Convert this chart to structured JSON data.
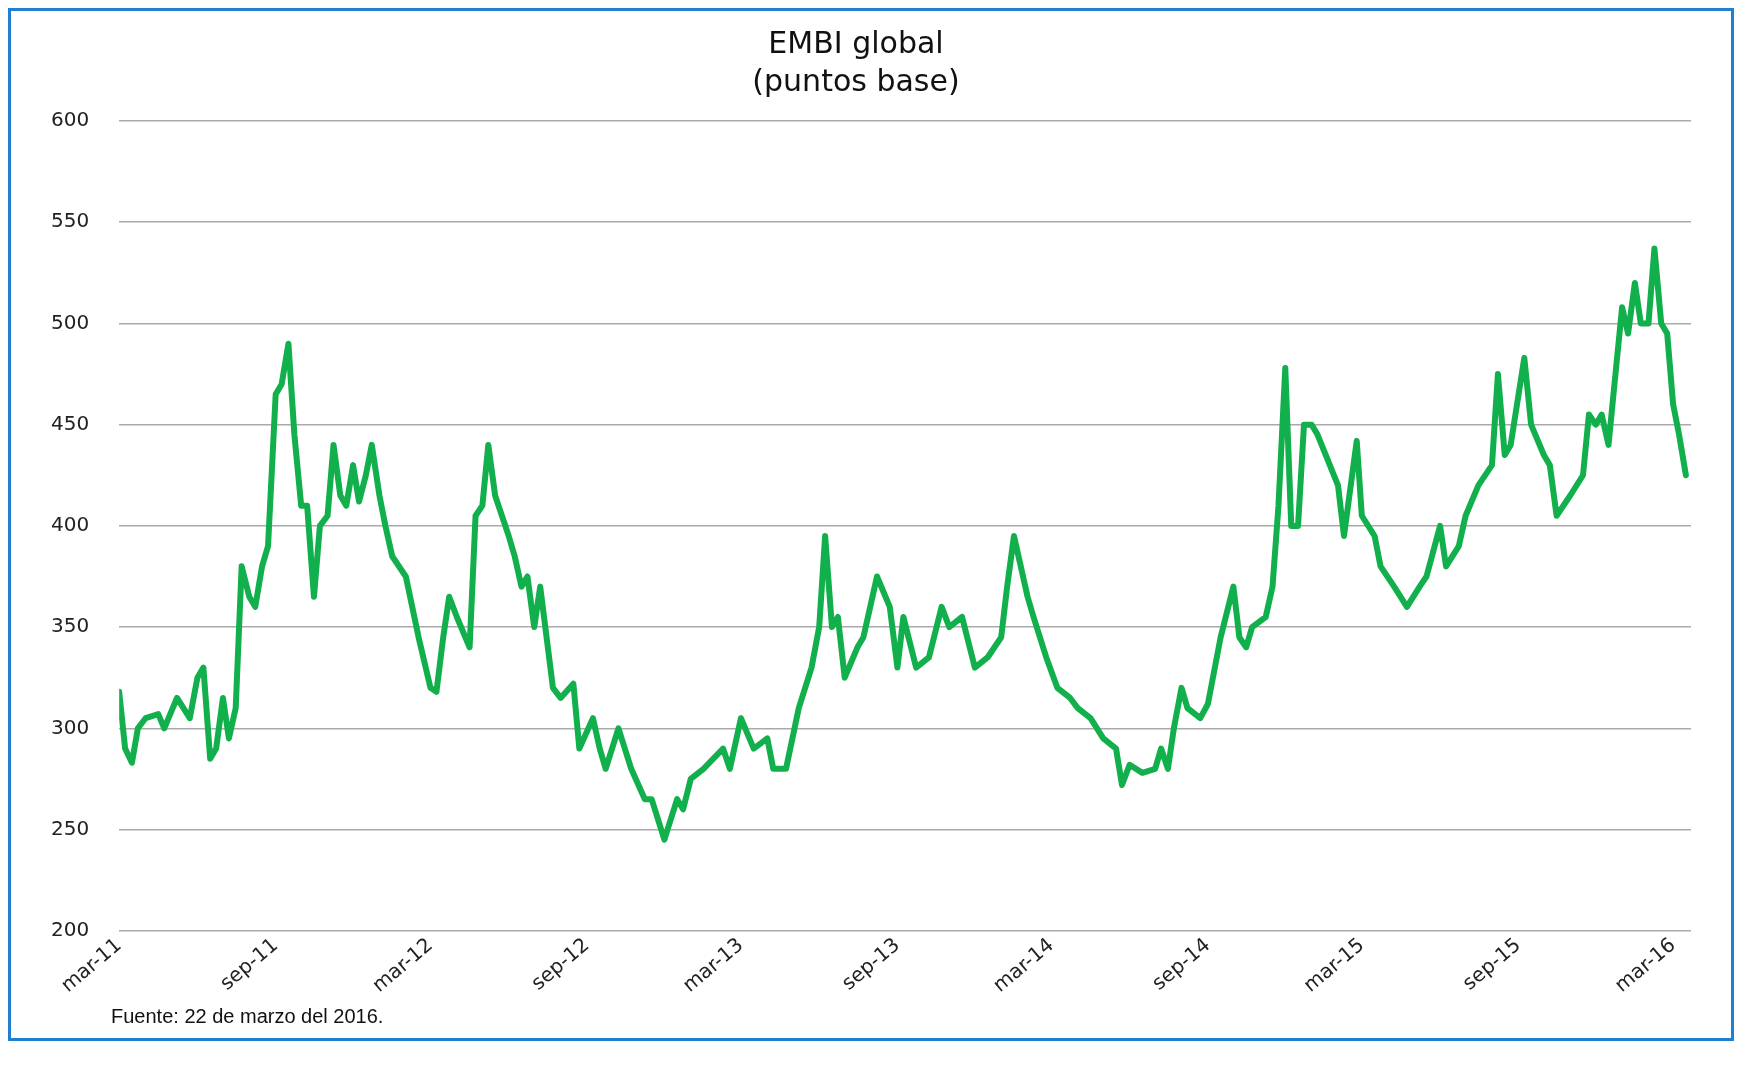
{
  "chart_data": {
    "type": "line",
    "title": "EMBI global",
    "subtitle": "(puntos base)",
    "annotations": [
      "Fuente: 22 de marzo del 2016."
    ],
    "x": [
      "2011-03-01",
      "2011-03-08",
      "2011-03-16",
      "2011-03-23",
      "2011-04-01",
      "2011-04-16",
      "2011-04-23",
      "2011-05-08",
      "2011-05-23",
      "2011-06-01",
      "2011-06-08",
      "2011-06-16",
      "2011-06-23",
      "2011-07-01",
      "2011-07-08",
      "2011-07-16",
      "2011-07-23",
      "2011-08-01",
      "2011-08-08",
      "2011-08-16",
      "2011-08-23",
      "2011-09-01",
      "2011-09-08",
      "2011-09-16",
      "2011-09-23",
      "2011-10-01",
      "2011-10-08",
      "2011-10-16",
      "2011-10-23",
      "2011-11-01",
      "2011-11-08",
      "2011-11-16",
      "2011-11-23",
      "2011-12-01",
      "2011-12-08",
      "2011-12-16",
      "2011-12-23",
      "2012-01-01",
      "2012-01-08",
      "2012-01-16",
      "2012-02-01",
      "2012-02-16",
      "2012-03-01",
      "2012-03-08",
      "2012-03-16",
      "2012-03-23",
      "2012-04-01",
      "2012-04-16",
      "2012-04-23",
      "2012-05-01",
      "2012-05-08",
      "2012-05-16",
      "2012-06-01",
      "2012-06-08",
      "2012-06-16",
      "2012-06-23",
      "2012-07-01",
      "2012-07-08",
      "2012-07-23",
      "2012-08-01",
      "2012-08-16",
      "2012-08-23",
      "2012-09-08",
      "2012-09-16",
      "2012-09-23",
      "2012-10-08",
      "2012-10-23",
      "2012-11-08",
      "2012-11-16",
      "2012-12-01",
      "2012-12-16",
      "2012-12-23",
      "2013-01-01",
      "2013-01-16",
      "2013-02-08",
      "2013-02-16",
      "2013-03-01",
      "2013-03-16",
      "2013-04-01",
      "2013-04-08",
      "2013-04-23",
      "2013-05-08",
      "2013-05-23",
      "2013-06-01",
      "2013-06-08",
      "2013-06-16",
      "2013-06-23",
      "2013-07-01",
      "2013-07-16",
      "2013-07-23",
      "2013-08-08",
      "2013-08-23",
      "2013-09-01",
      "2013-09-08",
      "2013-09-23",
      "2013-10-08",
      "2013-10-23",
      "2013-11-01",
      "2013-11-16",
      "2013-12-01",
      "2013-12-16",
      "2014-01-01",
      "2014-01-08",
      "2014-01-16",
      "2014-02-01",
      "2014-02-08",
      "2014-02-23",
      "2014-03-08",
      "2014-03-23",
      "2014-04-01",
      "2014-04-16",
      "2014-05-01",
      "2014-05-16",
      "2014-05-23",
      "2014-06-01",
      "2014-06-16",
      "2014-07-01",
      "2014-07-08",
      "2014-07-16",
      "2014-07-23",
      "2014-08-01",
      "2014-08-08",
      "2014-08-23",
      "2014-09-01",
      "2014-09-16",
      "2014-10-01",
      "2014-10-08",
      "2014-10-16",
      "2014-10-23",
      "2014-11-08",
      "2014-11-16",
      "2014-11-23",
      "2014-12-01",
      "2014-12-08",
      "2014-12-16",
      "2014-12-23",
      "2015-01-01",
      "2015-01-08",
      "2015-02-01",
      "2015-02-08",
      "2015-02-23",
      "2015-03-01",
      "2015-03-16",
      "2015-03-23",
      "2015-04-08",
      "2015-04-23",
      "2015-05-08",
      "2015-05-16",
      "2015-06-01",
      "2015-06-08",
      "2015-06-23",
      "2015-07-01",
      "2015-07-16",
      "2015-08-01",
      "2015-08-08",
      "2015-08-16",
      "2015-08-23",
      "2015-09-08",
      "2015-09-16",
      "2015-10-01",
      "2015-10-08",
      "2015-10-16",
      "2015-11-01",
      "2015-11-16",
      "2015-11-23",
      "2015-12-01",
      "2015-12-08",
      "2015-12-16",
      "2015-12-23",
      "2016-01-01",
      "2016-01-08",
      "2016-01-16",
      "2016-01-23",
      "2016-02-01",
      "2016-02-08",
      "2016-02-16",
      "2016-02-23",
      "2016-03-01",
      "2016-03-08",
      "2016-03-16"
    ],
    "series": [
      {
        "color": "#12b04c",
        "values": [
          318,
          290,
          283,
          300,
          305,
          307,
          300,
          315,
          305,
          325,
          330,
          285,
          290,
          315,
          295,
          310,
          380,
          365,
          360,
          380,
          390,
          465,
          470,
          490,
          445,
          410,
          410,
          365,
          400,
          405,
          440,
          415,
          410,
          430,
          412,
          425,
          440,
          415,
          400,
          385,
          375,
          345,
          320,
          318,
          345,
          365,
          355,
          340,
          405,
          410,
          440,
          415,
          395,
          385,
          370,
          375,
          350,
          370,
          320,
          315,
          322,
          290,
          305,
          290,
          280,
          300,
          280,
          265,
          265,
          245,
          265,
          260,
          275,
          280,
          290,
          280,
          305,
          290,
          295,
          280,
          280,
          310,
          330,
          350,
          395,
          350,
          355,
          325,
          340,
          345,
          375,
          360,
          330,
          355,
          330,
          335,
          360,
          350,
          355,
          330,
          335,
          345,
          370,
          395,
          365,
          355,
          335,
          320,
          315,
          310,
          305,
          295,
          290,
          272,
          282,
          278,
          280,
          290,
          280,
          300,
          320,
          310,
          305,
          312,
          345,
          370,
          345,
          340,
          350,
          355,
          370,
          410,
          478,
          400,
          400,
          450,
          450,
          445,
          420,
          395,
          442,
          405,
          395,
          380,
          370,
          360,
          370,
          375,
          400,
          380,
          390,
          405,
          420,
          430,
          475,
          435,
          440,
          483,
          450,
          435,
          430,
          405,
          415,
          425,
          455,
          450,
          455,
          440,
          470,
          508,
          495,
          520,
          500,
          500,
          537,
          500,
          495,
          460,
          445,
          425
        ]
      }
    ],
    "xlim": [
      "2011-03-01",
      "2016-03-22"
    ],
    "xticks": [
      {
        "value": "2011-03-01",
        "label": "mar-11"
      },
      {
        "value": "2011-09-01",
        "label": "sep-11"
      },
      {
        "value": "2012-03-01",
        "label": "mar-12"
      },
      {
        "value": "2012-09-01",
        "label": "sep-12"
      },
      {
        "value": "2013-03-01",
        "label": "mar-13"
      },
      {
        "value": "2013-09-01",
        "label": "sep-13"
      },
      {
        "value": "2014-03-01",
        "label": "mar-14"
      },
      {
        "value": "2014-09-01",
        "label": "sep-14"
      },
      {
        "value": "2015-03-01",
        "label": "mar-15"
      },
      {
        "value": "2015-09-01",
        "label": "sep-15"
      },
      {
        "value": "2016-03-01",
        "label": "mar-16"
      }
    ],
    "ylim": [
      200,
      600
    ],
    "yticks": [
      200,
      250,
      300,
      350,
      400,
      450,
      500,
      550,
      600
    ],
    "grid": "y",
    "legend": false,
    "marker": "none",
    "line_style": "solid"
  }
}
